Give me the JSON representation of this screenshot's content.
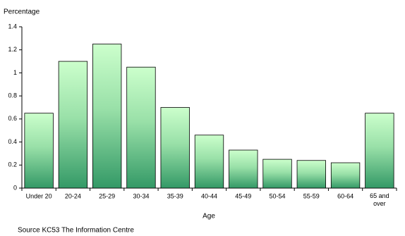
{
  "chart_data": {
    "type": "bar",
    "y_label": "Percentage",
    "x_label": "Age",
    "source": "Source KC53 The Information Centre",
    "categories": [
      "Under 20",
      "20-24",
      "25-29",
      "30-34",
      "35-39",
      "40-44",
      "45-49",
      "50-54",
      "55-59",
      "60-64",
      "65 and over"
    ],
    "values": [
      0.65,
      1.1,
      1.25,
      1.05,
      0.7,
      0.46,
      0.33,
      0.25,
      0.24,
      0.22,
      0.65
    ],
    "color": "#339966",
    "ylim": [
      0,
      1.4
    ],
    "yticks": [
      0,
      0.2,
      0.4,
      0.6,
      0.8,
      1,
      1.2,
      1.4
    ],
    "grid": false
  }
}
